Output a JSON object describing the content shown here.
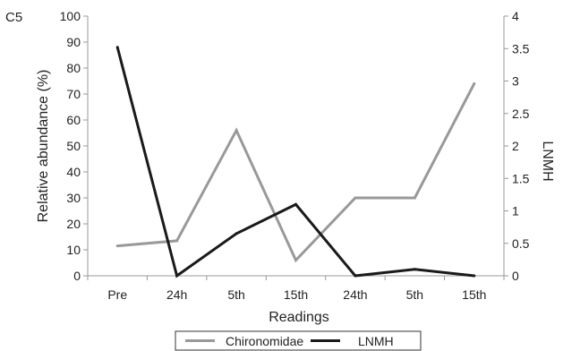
{
  "chart_data": {
    "type": "line",
    "panel_label": "C5",
    "categories": [
      "Pre",
      "24h",
      "5th",
      "15th",
      "24th",
      "5th",
      "15th"
    ],
    "xlabel": "Readings",
    "ylabel_left": "Relative abundance (%)",
    "ylabel_right": "LNMH",
    "ylim_left": [
      0,
      100
    ],
    "yticks_left": [
      "0",
      "10",
      "20",
      "30",
      "40",
      "50",
      "60",
      "70",
      "80",
      "90",
      "100"
    ],
    "ylim_right": [
      0,
      4
    ],
    "yticks_right": [
      "0",
      "0.5",
      "1",
      "1.5",
      "2",
      "2.5",
      "3",
      "3.5",
      "4"
    ],
    "grid": false,
    "legend_position": "bottom",
    "series": [
      {
        "name": "Chironomidae",
        "axis": "left",
        "color": "#999999",
        "values": [
          11.5,
          13.5,
          56,
          6,
          30,
          30,
          74
        ]
      },
      {
        "name": "LNMH",
        "axis": "right",
        "color": "#1a1a1a",
        "values": [
          3.52,
          0,
          0.65,
          1.1,
          0,
          0.1,
          0
        ]
      }
    ]
  }
}
